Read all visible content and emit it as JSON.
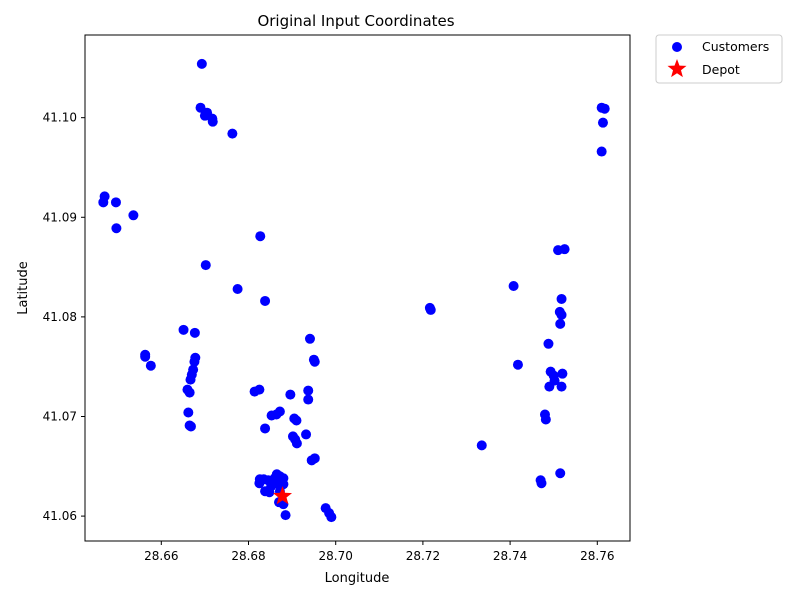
{
  "chart_data": {
    "type": "scatter",
    "title": "Original Input Coordinates",
    "xlabel": "Longitude",
    "ylabel": "Latitude",
    "xlim": [
      28.6425,
      28.7675
    ],
    "ylim": [
      41.0575,
      41.1083
    ],
    "x_ticks": [
      28.66,
      28.68,
      28.7,
      28.72,
      28.74,
      28.76
    ],
    "x_tick_labels": [
      "28.66",
      "28.68",
      "28.70",
      "28.72",
      "28.74",
      "28.76"
    ],
    "y_ticks": [
      41.06,
      41.07,
      41.08,
      41.09,
      41.1
    ],
    "y_tick_labels": [
      "41.06",
      "41.07",
      "41.08",
      "41.09",
      "41.10"
    ],
    "grid": false,
    "legend_position": "outside-upper-right",
    "series": [
      {
        "name": "Customers",
        "marker": "circle",
        "color": "#0000ff",
        "points": [
          [
            28.6693,
            41.1054
          ],
          [
            28.669,
            41.101
          ],
          [
            28.6705,
            41.1005
          ],
          [
            28.67,
            41.1002
          ],
          [
            28.6717,
            41.0999
          ],
          [
            28.6718,
            41.0996
          ],
          [
            28.6763,
            41.0984
          ],
          [
            28.647,
            41.0921
          ],
          [
            28.6467,
            41.0915
          ],
          [
            28.6496,
            41.0915
          ],
          [
            28.6536,
            41.0902
          ],
          [
            28.6497,
            41.0889
          ],
          [
            28.6827,
            41.0881
          ],
          [
            28.6702,
            41.0852
          ],
          [
            28.6775,
            41.0828
          ],
          [
            28.6838,
            41.0816
          ],
          [
            28.6651,
            41.0787
          ],
          [
            28.6677,
            41.0784
          ],
          [
            28.6941,
            41.0778
          ],
          [
            28.6563,
            41.0762
          ],
          [
            28.6563,
            41.076
          ],
          [
            28.6576,
            41.0751
          ],
          [
            28.6678,
            41.0759
          ],
          [
            28.6676,
            41.0755
          ],
          [
            28.6673,
            41.0747
          ],
          [
            28.667,
            41.0742
          ],
          [
            28.6667,
            41.0737
          ],
          [
            28.695,
            41.0757
          ],
          [
            28.6952,
            41.0755
          ],
          [
            28.666,
            41.0727
          ],
          [
            28.6665,
            41.0724
          ],
          [
            28.6814,
            41.0725
          ],
          [
            28.6825,
            41.0727
          ],
          [
            28.6896,
            41.0722
          ],
          [
            28.6937,
            41.0726
          ],
          [
            28.6937,
            41.0717
          ],
          [
            28.6662,
            41.0704
          ],
          [
            28.6853,
            41.0701
          ],
          [
            28.6864,
            41.0702
          ],
          [
            28.6872,
            41.0705
          ],
          [
            28.6905,
            41.0698
          ],
          [
            28.691,
            41.0696
          ],
          [
            28.6665,
            41.0691
          ],
          [
            28.6668,
            41.069
          ],
          [
            28.6838,
            41.0688
          ],
          [
            28.6902,
            41.068
          ],
          [
            28.6907,
            41.0677
          ],
          [
            28.6932,
            41.0682
          ],
          [
            28.6911,
            41.0673
          ],
          [
            28.6945,
            41.0656
          ],
          [
            28.6952,
            41.0658
          ],
          [
            28.6865,
            41.0642
          ],
          [
            28.6872,
            41.064
          ],
          [
            28.688,
            41.0638
          ],
          [
            28.686,
            41.0638
          ],
          [
            28.6826,
            41.0637
          ],
          [
            28.6835,
            41.0637
          ],
          [
            28.6845,
            41.0636
          ],
          [
            28.6825,
            41.0633
          ],
          [
            28.6862,
            41.0634
          ],
          [
            28.687,
            41.0632
          ],
          [
            28.688,
            41.0632
          ],
          [
            28.6852,
            41.063
          ],
          [
            28.6838,
            41.0625
          ],
          [
            28.6848,
            41.0624
          ],
          [
            28.6872,
            41.0625
          ],
          [
            28.687,
            41.0614
          ],
          [
            28.688,
            41.0612
          ],
          [
            28.6885,
            41.0601
          ],
          [
            28.6977,
            41.0608
          ],
          [
            28.6985,
            41.0603
          ],
          [
            28.699,
            41.0599
          ],
          [
            28.7216,
            41.0809
          ],
          [
            28.7218,
            41.0807
          ],
          [
            28.7335,
            41.0671
          ],
          [
            28.7408,
            41.0831
          ],
          [
            28.7418,
            41.0752
          ],
          [
            28.747,
            41.0636
          ],
          [
            28.7472,
            41.0633
          ],
          [
            28.748,
            41.0702
          ],
          [
            28.7482,
            41.0697
          ],
          [
            28.7488,
            41.0773
          ],
          [
            28.7493,
            41.0745
          ],
          [
            28.75,
            41.0741
          ],
          [
            28.7502,
            41.0736
          ],
          [
            28.752,
            41.0743
          ],
          [
            28.749,
            41.073
          ],
          [
            28.7518,
            41.073
          ],
          [
            28.751,
            41.0867
          ],
          [
            28.7525,
            41.0868
          ],
          [
            28.7518,
            41.0818
          ],
          [
            28.7514,
            41.0805
          ],
          [
            28.7518,
            41.0802
          ],
          [
            28.7515,
            41.0793
          ],
          [
            28.7515,
            41.0643
          ],
          [
            28.761,
            41.101
          ],
          [
            28.7617,
            41.1009
          ],
          [
            28.7613,
            41.0995
          ],
          [
            28.761,
            41.0966
          ]
        ]
      },
      {
        "name": "Depot",
        "marker": "star",
        "color": "#ff0000",
        "points": [
          [
            28.6878,
            41.062
          ]
        ]
      }
    ]
  }
}
